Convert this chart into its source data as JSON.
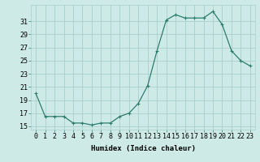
{
  "x": [
    0,
    1,
    2,
    3,
    4,
    5,
    6,
    7,
    8,
    9,
    10,
    11,
    12,
    13,
    14,
    15,
    16,
    17,
    18,
    19,
    20,
    21,
    22,
    23
  ],
  "y": [
    20.0,
    16.5,
    16.5,
    16.5,
    15.5,
    15.5,
    15.2,
    15.5,
    15.5,
    16.5,
    17.0,
    18.5,
    21.2,
    26.5,
    31.2,
    32.0,
    31.5,
    31.5,
    31.5,
    32.5,
    30.5,
    26.5,
    25.0,
    24.2
  ],
  "line_color": "#2d7d6e",
  "marker": "+",
  "marker_size": 3,
  "bg_color": "#ceeae7",
  "grid_color": "#aacfcc",
  "xlabel": "Humidex (Indice chaleur)",
  "xlim": [
    -0.5,
    23.5
  ],
  "ylim": [
    14.5,
    33.5
  ],
  "yticks": [
    15,
    17,
    19,
    21,
    23,
    25,
    27,
    29,
    31
  ],
  "xtick_labels": [
    "0",
    "1",
    "2",
    "3",
    "4",
    "5",
    "6",
    "7",
    "8",
    "9",
    "10",
    "11",
    "12",
    "13",
    "14",
    "15",
    "16",
    "17",
    "18",
    "19",
    "20",
    "21",
    "22",
    "23"
  ],
  "axis_fontsize": 6.5,
  "tick_fontsize": 6.0
}
